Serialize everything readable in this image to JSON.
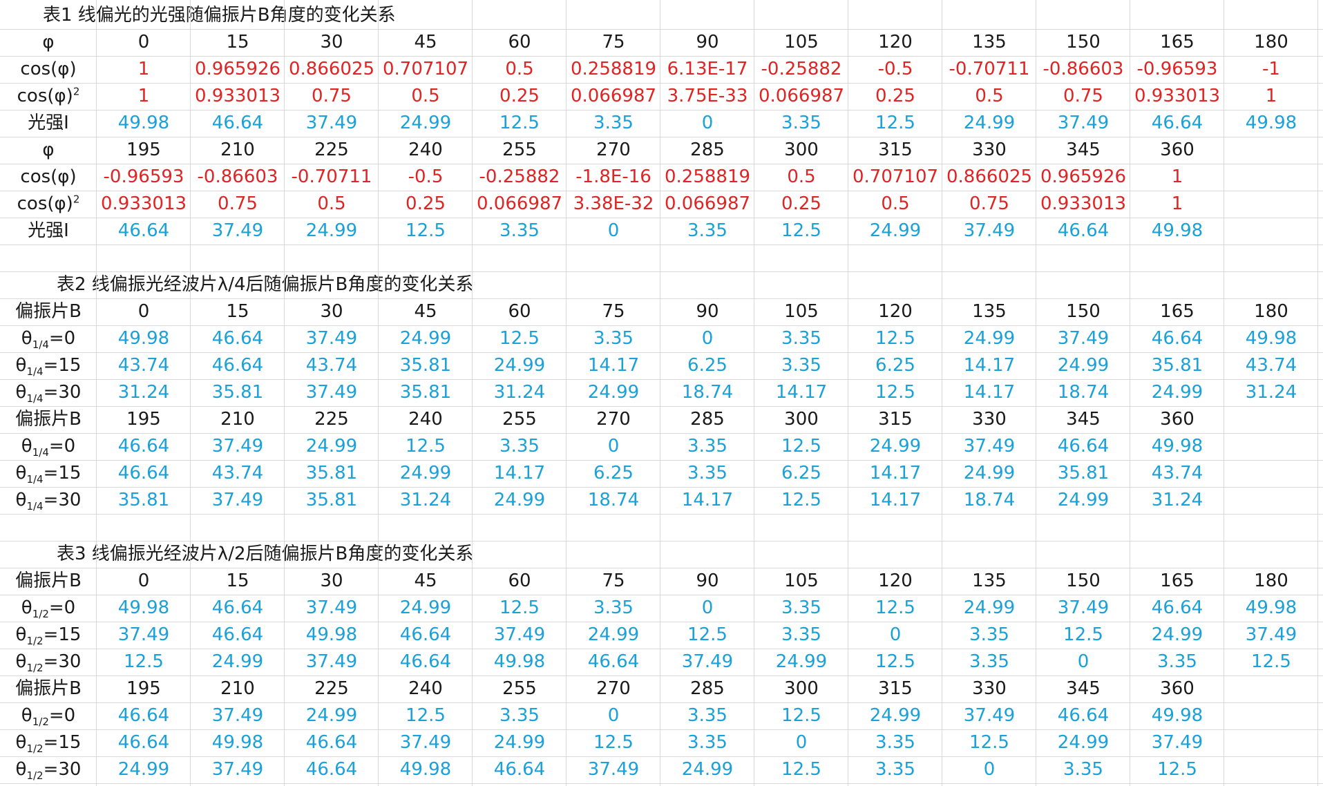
{
  "colors": {
    "header": "#1a1a1a",
    "red": "#e02424",
    "blue": "#1ba1d9",
    "grid": "#d9d9d9"
  },
  "table1": {
    "title": "表1 线偏光的光强随偏振片B角度的变化关系",
    "row_labels": {
      "phi": "φ",
      "cos": "cos(φ)",
      "cos2_base": "cos(φ)",
      "cos2_sup": "2",
      "intensity": "光强I"
    },
    "block1": {
      "phi": [
        "0",
        "15",
        "30",
        "45",
        "60",
        "75",
        "90",
        "105",
        "120",
        "135",
        "150",
        "165",
        "180"
      ],
      "cos": [
        "1",
        "0.965926",
        "0.866025",
        "0.707107",
        "0.5",
        "0.258819",
        "6.13E-17",
        "-0.25882",
        "-0.5",
        "-0.70711",
        "-0.86603",
        "-0.96593",
        "-1"
      ],
      "cos2": [
        "1",
        "0.933013",
        "0.75",
        "0.5",
        "0.25",
        "0.066987",
        "3.75E-33",
        "0.066987",
        "0.25",
        "0.5",
        "0.75",
        "0.933013",
        "1"
      ],
      "intensity": [
        "49.98",
        "46.64",
        "37.49",
        "24.99",
        "12.5",
        "3.35",
        "0",
        "3.35",
        "12.5",
        "24.99",
        "37.49",
        "46.64",
        "49.98"
      ]
    },
    "block2": {
      "phi": [
        "195",
        "210",
        "225",
        "240",
        "255",
        "270",
        "285",
        "300",
        "315",
        "330",
        "345",
        "360"
      ],
      "cos": [
        "-0.96593",
        "-0.86603",
        "-0.70711",
        "-0.5",
        "-0.25882",
        "-1.8E-16",
        "0.258819",
        "0.5",
        "0.707107",
        "0.866025",
        "0.965926",
        "1"
      ],
      "cos2": [
        "0.933013",
        "0.75",
        "0.5",
        "0.25",
        "0.066987",
        "3.38E-32",
        "0.066987",
        "0.25",
        "0.5",
        "0.75",
        "0.933013",
        "1"
      ],
      "intensity": [
        "46.64",
        "37.49",
        "24.99",
        "12.5",
        "3.35",
        "0",
        "3.35",
        "12.5",
        "24.99",
        "37.49",
        "46.64",
        "49.98"
      ]
    }
  },
  "table2": {
    "title": "表2 线偏振光经波片λ/4后随偏振片B角度的变化关系",
    "angle_label": "偏振片B",
    "theta_symbol": "θ",
    "theta_sub": "1/4",
    "theta_suffixes": [
      "=0",
      "=15",
      "=30"
    ],
    "block1": {
      "angles": [
        "0",
        "15",
        "30",
        "45",
        "60",
        "75",
        "90",
        "105",
        "120",
        "135",
        "150",
        "165",
        "180"
      ],
      "rows": [
        [
          "49.98",
          "46.64",
          "37.49",
          "24.99",
          "12.5",
          "3.35",
          "0",
          "3.35",
          "12.5",
          "24.99",
          "37.49",
          "46.64",
          "49.98"
        ],
        [
          "43.74",
          "46.64",
          "43.74",
          "35.81",
          "24.99",
          "14.17",
          "6.25",
          "3.35",
          "6.25",
          "14.17",
          "24.99",
          "35.81",
          "43.74"
        ],
        [
          "31.24",
          "35.81",
          "37.49",
          "35.81",
          "31.24",
          "24.99",
          "18.74",
          "14.17",
          "12.5",
          "14.17",
          "18.74",
          "24.99",
          "31.24"
        ]
      ]
    },
    "block2": {
      "angles": [
        "195",
        "210",
        "225",
        "240",
        "255",
        "270",
        "285",
        "300",
        "315",
        "330",
        "345",
        "360"
      ],
      "rows": [
        [
          "46.64",
          "37.49",
          "24.99",
          "12.5",
          "3.35",
          "0",
          "3.35",
          "12.5",
          "24.99",
          "37.49",
          "46.64",
          "49.98"
        ],
        [
          "46.64",
          "43.74",
          "35.81",
          "24.99",
          "14.17",
          "6.25",
          "3.35",
          "6.25",
          "14.17",
          "24.99",
          "35.81",
          "43.74"
        ],
        [
          "35.81",
          "37.49",
          "35.81",
          "31.24",
          "24.99",
          "18.74",
          "14.17",
          "12.5",
          "14.17",
          "18.74",
          "24.99",
          "31.24"
        ]
      ]
    }
  },
  "table3": {
    "title": "表3 线偏振光经波片λ/2后随偏振片B角度的变化关系",
    "angle_label": "偏振片B",
    "theta_symbol": "θ",
    "theta_sub": "1/2",
    "theta_suffixes": [
      "=0",
      "=15",
      "=30"
    ],
    "block1": {
      "angles": [
        "0",
        "15",
        "30",
        "45",
        "60",
        "75",
        "90",
        "105",
        "120",
        "135",
        "150",
        "165",
        "180"
      ],
      "rows": [
        [
          "49.98",
          "46.64",
          "37.49",
          "24.99",
          "12.5",
          "3.35",
          "0",
          "3.35",
          "12.5",
          "24.99",
          "37.49",
          "46.64",
          "49.98"
        ],
        [
          "37.49",
          "46.64",
          "49.98",
          "46.64",
          "37.49",
          "24.99",
          "12.5",
          "3.35",
          "0",
          "3.35",
          "12.5",
          "24.99",
          "37.49"
        ],
        [
          "12.5",
          "24.99",
          "37.49",
          "46.64",
          "49.98",
          "46.64",
          "37.49",
          "24.99",
          "12.5",
          "3.35",
          "0",
          "3.35",
          "12.5"
        ]
      ]
    },
    "block2": {
      "angles": [
        "195",
        "210",
        "225",
        "240",
        "255",
        "270",
        "285",
        "300",
        "315",
        "330",
        "345",
        "360"
      ],
      "rows": [
        [
          "46.64",
          "37.49",
          "24.99",
          "12.5",
          "3.35",
          "0",
          "3.35",
          "12.5",
          "24.99",
          "37.49",
          "46.64",
          "49.98"
        ],
        [
          "46.64",
          "49.98",
          "46.64",
          "37.49",
          "24.99",
          "12.5",
          "3.35",
          "0",
          "3.35",
          "12.5",
          "24.99",
          "37.49"
        ],
        [
          "24.99",
          "37.49",
          "46.64",
          "49.98",
          "46.64",
          "37.49",
          "24.99",
          "12.5",
          "3.35",
          "0",
          "3.35",
          "12.5"
        ]
      ]
    }
  }
}
